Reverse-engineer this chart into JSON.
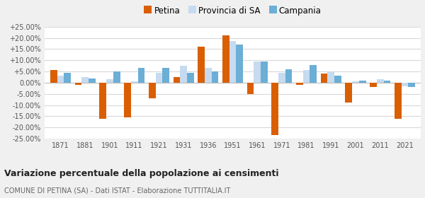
{
  "years": [
    1871,
    1881,
    1901,
    1911,
    1921,
    1931,
    1936,
    1951,
    1961,
    1971,
    1981,
    1991,
    2001,
    2011,
    2021
  ],
  "petina": [
    5.5,
    -1.0,
    -16.0,
    -15.5,
    -7.0,
    2.5,
    16.0,
    21.0,
    -5.0,
    -23.5,
    -1.0,
    4.0,
    -9.0,
    -2.0,
    -16.0
  ],
  "provincia_sa": [
    3.0,
    2.5,
    1.5,
    0.5,
    4.5,
    7.5,
    6.5,
    18.5,
    9.5,
    4.5,
    5.5,
    5.0,
    0.5,
    1.5,
    -1.5
  ],
  "campania": [
    4.5,
    2.0,
    5.0,
    6.5,
    6.5,
    4.5,
    5.0,
    17.0,
    9.5,
    6.0,
    8.0,
    3.0,
    1.0,
    1.0,
    -2.0
  ],
  "petina_color": "#d95f02",
  "provincia_color": "#c6dbef",
  "campania_color": "#6baed6",
  "legend_labels": [
    "Petina",
    "Provincia di SA",
    "Campania"
  ],
  "title": "Variazione percentuale della popolazione ai censimenti",
  "subtitle": "COMUNE DI PETINA (SA) - Dati ISTAT - Elaborazione TUTTITALIA.IT",
  "ylim": [
    -25.0,
    25.0
  ],
  "yticks": [
    -25,
    -20,
    -15,
    -10,
    -5,
    0,
    5,
    10,
    15,
    20,
    25
  ],
  "plot_bg_color": "#ffffff",
  "fig_bg_color": "#f0f0f0",
  "grid_color": "#d8d8d8",
  "bar_width": 0.28
}
